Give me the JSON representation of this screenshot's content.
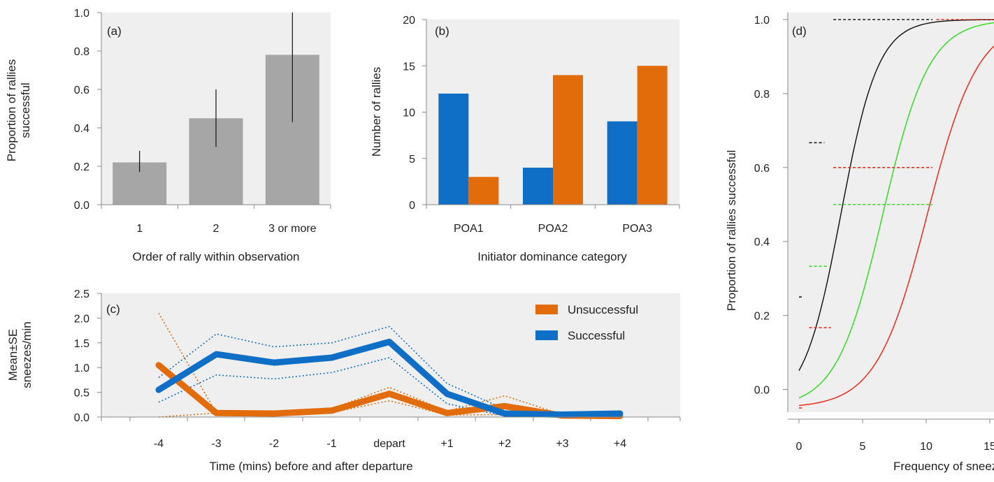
{
  "chart_data": [
    {
      "id": "a",
      "type": "bar",
      "panel_label": "(a)",
      "categories": [
        "1",
        "2",
        "3 or more"
      ],
      "values": [
        0.22,
        0.45,
        0.78
      ],
      "error_low": [
        0.17,
        0.3,
        0.43
      ],
      "error_high": [
        0.28,
        0.6,
        1.0
      ],
      "xlabel": "Order of rally within observation",
      "ylabel_lines": [
        "Proportion of rallies",
        "successful"
      ],
      "ylim": [
        0,
        1.0
      ],
      "yticks": [
        "0.0",
        "0.2",
        "0.4",
        "0.6",
        "0.8",
        "1.0"
      ],
      "bar_color": "#a6a6a6"
    },
    {
      "id": "b",
      "type": "bar",
      "panel_label": "(b)",
      "categories": [
        "POA1",
        "POA2",
        "POA3"
      ],
      "series": [
        {
          "values": [
            12,
            4,
            9
          ],
          "color": "#0f6fc6"
        },
        {
          "values": [
            3,
            14,
            15
          ],
          "color": "#e36c0a"
        }
      ],
      "xlabel": "Initiator dominance category",
      "ylabel": "Number of rallies",
      "ylim": [
        0,
        20
      ],
      "yticks": [
        "0",
        "5",
        "10",
        "15",
        "20"
      ]
    },
    {
      "id": "c",
      "type": "line",
      "panel_label": "(c)",
      "x_labels": [
        "-4",
        "-3",
        "-2",
        "-1",
        "depart",
        "+1",
        "+2",
        "+3",
        "+4"
      ],
      "series": [
        {
          "name": "Unsuccessful",
          "color": "#e36c0a",
          "values": [
            1.05,
            0.08,
            0.07,
            0.13,
            0.47,
            0.08,
            0.22,
            0.03,
            0.02
          ],
          "upper": [
            2.1,
            0.08,
            0.07,
            0.17,
            0.6,
            0.12,
            0.43,
            0.05,
            0.03
          ],
          "lower": [
            0.0,
            0.08,
            0.07,
            0.09,
            0.33,
            0.04,
            0.05,
            0.01,
            0.01
          ]
        },
        {
          "name": "Successful",
          "color": "#0f6fc6",
          "values": [
            0.55,
            1.27,
            1.1,
            1.2,
            1.52,
            0.47,
            0.07,
            0.05,
            0.07
          ],
          "upper": [
            0.8,
            1.68,
            1.42,
            1.5,
            1.83,
            0.68,
            0.16,
            0.08,
            0.1
          ],
          "lower": [
            0.3,
            0.85,
            0.77,
            0.9,
            1.2,
            0.27,
            0.02,
            0.02,
            0.04
          ]
        }
      ],
      "xlabel": "Time (mins) before and after departure",
      "ylabel_lines": [
        "Mean±SE",
        "sneezes/min"
      ],
      "ylim": [
        0,
        2.5
      ],
      "yticks": [
        "0.0",
        "0.5",
        "1.0",
        "1.5",
        "2.0",
        "2.5"
      ],
      "legend_position": "top-right"
    },
    {
      "id": "d",
      "type": "line",
      "panel_label": "(d)",
      "xlabel": "Frequency of sneezes",
      "ylabel": "Proportion of rallies successful",
      "xlim": [
        -0.5,
        15.5
      ],
      "ylim": [
        -0.05,
        1.0
      ],
      "xticks": [
        "0",
        "5",
        "10",
        "15"
      ],
      "yticks": [
        "0.0",
        "0.2",
        "0.4",
        "0.6",
        "0.8",
        "1.0"
      ],
      "curves": [
        {
          "color": "#1a1a1a",
          "x50": 3.3,
          "k": 0.68
        },
        {
          "color": "#33dd22",
          "x50": 6.6,
          "k": 0.55
        },
        {
          "color": "#ee2a1a",
          "x50": 10.1,
          "k": 0.5
        }
      ],
      "observed_segments": [
        {
          "color": "#1a1a1a",
          "x1": 0,
          "x2": 0.3,
          "y": 0.25
        },
        {
          "color": "#1a1a1a",
          "x1": 0.8,
          "x2": 2.0,
          "y": 0.667
        },
        {
          "color": "#1a1a1a",
          "x1": 2.7,
          "x2": 10.5,
          "y": 1.0
        },
        {
          "color": "#33dd22",
          "x1": 0.8,
          "x2": 2.2,
          "y": 0.333
        },
        {
          "color": "#33dd22",
          "x1": 2.7,
          "x2": 10.5,
          "y": 0.5
        },
        {
          "color": "#ee2a1a",
          "x1": 0,
          "x2": 0.3,
          "y": -0.05
        },
        {
          "color": "#ee2a1a",
          "x1": 0.8,
          "x2": 2.5,
          "y": 0.167
        },
        {
          "color": "#ee2a1a",
          "x1": 2.7,
          "x2": 10.5,
          "y": 0.6
        },
        {
          "color": "#ee2a1a",
          "x1": 10.8,
          "x2": 15.5,
          "y": 1.0
        }
      ]
    }
  ]
}
